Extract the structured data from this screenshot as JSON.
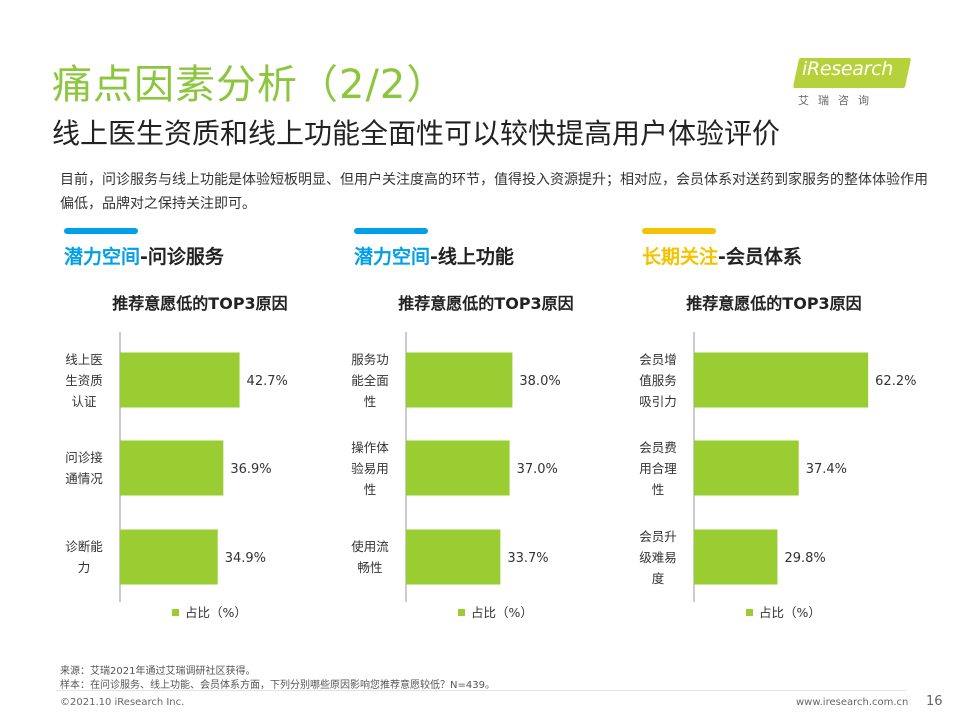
{
  "header": {
    "title": "痛点因素分析（2/2）",
    "subtitle": "线上医生资质和线上功能全面性可以较快提高用户体验评价",
    "intro": "目前，问诊服务与线上功能是体验短板明显、但用户关注度高的环节，值得投入资源提升；相对应，会员体系对送药到家服务的整体体验作用偏低，品牌对之保持关注即可。"
  },
  "logo": {
    "main": "iResearch",
    "sub": "艾瑞咨询"
  },
  "sections": [
    {
      "highlight": "潜力空间",
      "rest": "-问诊服务",
      "color": "#00a0e9"
    },
    {
      "highlight": "潜力空间",
      "rest": "-线上功能",
      "color": "#00a0e9"
    },
    {
      "highlight": "长期关注",
      "rest": "-会员体系",
      "color": "#f5c200"
    }
  ],
  "chart_data": [
    {
      "type": "bar",
      "orientation": "horizontal",
      "title": "推荐意愿低的TOP3原因",
      "categories": [
        [
          "线上医",
          "生资质",
          "认证"
        ],
        [
          "问诊接",
          "通情况"
        ],
        [
          "诊断能",
          "力"
        ]
      ],
      "values": [
        42.7,
        36.9,
        34.9
      ],
      "value_labels": [
        "42.7%",
        "36.9%",
        "34.9%"
      ],
      "legend": "占比（%）",
      "xlim": [
        0,
        100
      ],
      "color": "#9acd32"
    },
    {
      "type": "bar",
      "orientation": "horizontal",
      "title": "推荐意愿低的TOP3原因",
      "categories": [
        [
          "服务功",
          "能全面",
          "性"
        ],
        [
          "操作体",
          "验易用",
          "性"
        ],
        [
          "使用流",
          "畅性"
        ]
      ],
      "values": [
        38.0,
        37.0,
        33.7
      ],
      "value_labels": [
        "38.0%",
        "37.0%",
        "33.7%"
      ],
      "legend": "占比（%）",
      "xlim": [
        0,
        100
      ],
      "color": "#9acd32"
    },
    {
      "type": "bar",
      "orientation": "horizontal",
      "title": "推荐意愿低的TOP3原因",
      "categories": [
        [
          "会员增",
          "值服务",
          "吸引力"
        ],
        [
          "会员费",
          "用合理",
          "性"
        ],
        [
          "会员升",
          "级难易",
          "度"
        ]
      ],
      "values": [
        62.2,
        37.4,
        29.8
      ],
      "value_labels": [
        "62.2%",
        "37.4%",
        "29.8%"
      ],
      "legend": "占比（%）",
      "xlim": [
        0,
        100
      ],
      "color": "#9acd32"
    }
  ],
  "footer": {
    "source": "来源：艾瑞2021年通过艾瑞调研社区获得。",
    "sample": "样本：在问诊服务、线上功能、会员体系方面，下列分别哪些原因影响您推荐意愿较低？N=439。",
    "copyright": "©2021.10 iResearch Inc.",
    "website": "www.iresearch.com.cn",
    "page": "16"
  }
}
